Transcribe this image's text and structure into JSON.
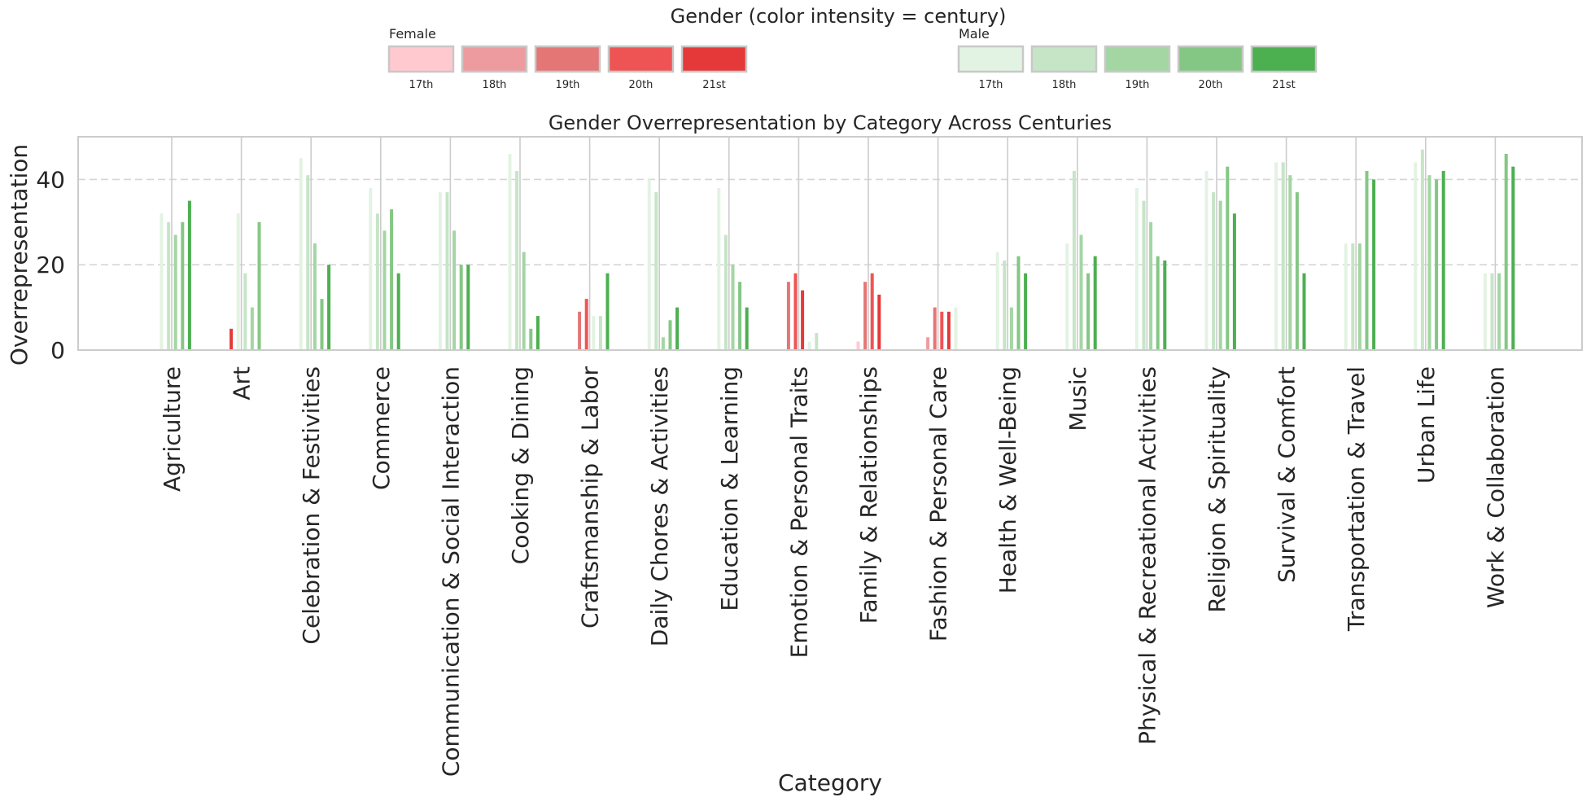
{
  "chart_data": {
    "type": "bar",
    "title": "Gender Overrepresentation by Category Across Centuries",
    "xlabel": "Category",
    "ylabel": "Overrepresentation",
    "ylim": [
      0,
      50
    ],
    "yticks": [
      0,
      20,
      40
    ],
    "ytick_labels": [
      "0",
      "20",
      "40"
    ],
    "grid": true,
    "legend": {
      "title": "Gender (color intensity = century)",
      "placement": "top-center",
      "groups": [
        {
          "name": "Female",
          "entries": [
            {
              "label": "17th",
              "color": "#ffc9cf"
            },
            {
              "label": "18th",
              "color": "#ee9ba0"
            },
            {
              "label": "19th",
              "color": "#e47676"
            },
            {
              "label": "20th",
              "color": "#ef5455"
            },
            {
              "label": "21st",
              "color": "#e53939"
            }
          ]
        },
        {
          "name": "Male",
          "entries": [
            {
              "label": "17th",
              "color": "#e3f3e3"
            },
            {
              "label": "18th",
              "color": "#c6e5c7"
            },
            {
              "label": "19th",
              "color": "#a3d6a3"
            },
            {
              "label": "20th",
              "color": "#84c784"
            },
            {
              "label": "21st",
              "color": "#4caf50"
            }
          ]
        }
      ]
    },
    "series_order": [
      {
        "gender": "Female",
        "century": "17th"
      },
      {
        "gender": "Female",
        "century": "18th"
      },
      {
        "gender": "Female",
        "century": "19th"
      },
      {
        "gender": "Female",
        "century": "20th"
      },
      {
        "gender": "Female",
        "century": "21st"
      },
      {
        "gender": "Male",
        "century": "17th"
      },
      {
        "gender": "Male",
        "century": "18th"
      },
      {
        "gender": "Male",
        "century": "19th"
      },
      {
        "gender": "Male",
        "century": "20th"
      },
      {
        "gender": "Male",
        "century": "21st"
      }
    ],
    "categories": [
      {
        "name": "Agriculture",
        "values": [
          0,
          0,
          0,
          0,
          0,
          32,
          30,
          27,
          30,
          35
        ]
      },
      {
        "name": "Art",
        "values": [
          0,
          0,
          0,
          0,
          5,
          32,
          18,
          10,
          30,
          0
        ]
      },
      {
        "name": "Celebration & Festivities",
        "values": [
          0,
          0,
          0,
          0,
          0,
          45,
          41,
          25,
          12,
          20
        ]
      },
      {
        "name": "Commerce",
        "values": [
          0,
          0,
          0,
          0,
          0,
          38,
          32,
          28,
          33,
          18
        ]
      },
      {
        "name": "Communication & Social Interaction",
        "values": [
          0,
          0,
          0,
          0,
          0,
          37,
          37,
          28,
          20,
          20
        ]
      },
      {
        "name": "Cooking & Dining",
        "values": [
          0,
          0,
          0,
          0,
          0,
          46,
          42,
          23,
          5,
          8
        ]
      },
      {
        "name": "Craftsmanship & Labor",
        "values": [
          0,
          0,
          9,
          12,
          0,
          8,
          8,
          0,
          0,
          18
        ]
      },
      {
        "name": "Daily Chores & Activities",
        "values": [
          0,
          0,
          0,
          0,
          0,
          40,
          37,
          3,
          7,
          10
        ]
      },
      {
        "name": "Education & Learning",
        "values": [
          0,
          0,
          0,
          0,
          0,
          38,
          27,
          20,
          16,
          10
        ]
      },
      {
        "name": "Emotion & Personal Traits",
        "values": [
          0,
          0,
          16,
          18,
          14,
          2,
          4,
          0,
          0,
          0
        ]
      },
      {
        "name": "Family & Relationships",
        "values": [
          2,
          0,
          16,
          18,
          13,
          0,
          0,
          0,
          0,
          0
        ]
      },
      {
        "name": "Fashion & Personal Care",
        "values": [
          0,
          3,
          10,
          9,
          9,
          10,
          0,
          0,
          0,
          0
        ]
      },
      {
        "name": "Health & Well-Being",
        "values": [
          0,
          0,
          0,
          0,
          0,
          23,
          21,
          10,
          22,
          18
        ]
      },
      {
        "name": "Music",
        "values": [
          0,
          0,
          0,
          0,
          0,
          25,
          42,
          27,
          18,
          22
        ]
      },
      {
        "name": "Physical & Recreational Activities",
        "values": [
          0,
          0,
          0,
          0,
          0,
          38,
          35,
          30,
          22,
          21
        ]
      },
      {
        "name": "Religion & Spirituality",
        "values": [
          0,
          0,
          0,
          0,
          0,
          42,
          37,
          35,
          43,
          32
        ]
      },
      {
        "name": "Survival & Comfort",
        "values": [
          0,
          0,
          0,
          0,
          0,
          44,
          44,
          41,
          37,
          18
        ]
      },
      {
        "name": "Transportation & Travel",
        "values": [
          0,
          0,
          0,
          0,
          0,
          25,
          25,
          25,
          42,
          40
        ]
      },
      {
        "name": "Urban Life",
        "values": [
          0,
          0,
          0,
          0,
          0,
          44,
          47,
          41,
          40,
          42
        ]
      },
      {
        "name": "Work & Collaboration",
        "values": [
          0,
          0,
          0,
          0,
          0,
          18,
          18,
          18,
          46,
          43
        ]
      }
    ]
  }
}
